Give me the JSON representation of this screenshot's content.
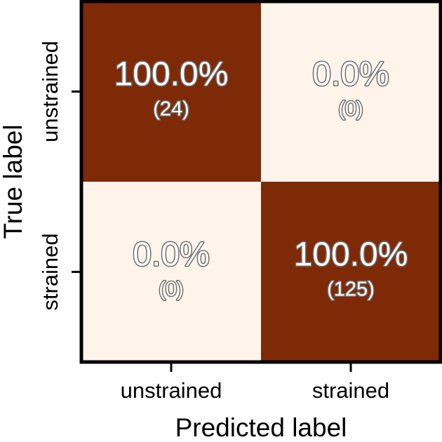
{
  "chart_data": {
    "type": "heatmap",
    "title": "",
    "xlabel": "Predicted label",
    "ylabel": "True label",
    "x_categories": [
      "unstrained",
      "strained"
    ],
    "y_categories": [
      "unstrained",
      "strained"
    ],
    "cells": [
      [
        {
          "percent": "100.0%",
          "count": "(24)",
          "value": 1.0
        },
        {
          "percent": "0.0%",
          "count": "(0)",
          "value": 0.0
        }
      ],
      [
        {
          "percent": "0.0%",
          "count": "(0)",
          "value": 0.0
        },
        {
          "percent": "100.0%",
          "count": "(125)",
          "value": 1.0
        }
      ]
    ],
    "colormap": {
      "low": "#fff4e9",
      "high": "#7f2a07"
    },
    "text_style": {
      "fill": "#ffffff",
      "outline": "#6e6e6e"
    },
    "grid": false,
    "legend": "none"
  }
}
